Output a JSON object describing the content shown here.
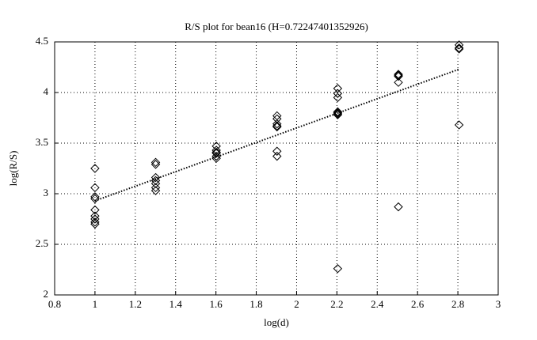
{
  "chart_data": {
    "type": "scatter",
    "title": "R/S plot for bean16 (H=0.72247401352926)",
    "x_label": "log(d)",
    "y_label": "log(R/S)",
    "x": [
      1,
      1,
      1,
      1,
      1,
      1,
      1,
      1,
      1,
      1.301,
      1.301,
      1.301,
      1.301,
      1.301,
      1.301,
      1.301,
      1.602,
      1.602,
      1.602,
      1.602,
      1.602,
      1.602,
      1.903,
      1.903,
      1.903,
      1.903,
      1.903,
      1.903,
      1.903,
      2.204,
      2.204,
      2.204,
      2.204,
      2.204,
      2.204,
      2.204,
      2.204,
      2.505,
      2.505,
      2.505,
      2.505,
      2.505,
      2.806,
      2.806,
      2.806,
      2.806
    ],
    "values": [
      3.25,
      3.06,
      2.97,
      2.95,
      2.84,
      2.78,
      2.75,
      2.72,
      2.7,
      3.31,
      3.29,
      3.16,
      3.13,
      3.1,
      3.06,
      3.03,
      3.47,
      3.43,
      3.41,
      3.4,
      3.37,
      3.35,
      3.77,
      3.74,
      3.69,
      3.67,
      3.66,
      3.42,
      3.37,
      4.04,
      3.99,
      3.95,
      3.81,
      3.8,
      3.79,
      3.78,
      2.26,
      4.18,
      4.17,
      4.16,
      4.1,
      2.87,
      4.47,
      4.44,
      4.43,
      3.68
    ],
    "color": "#000000",
    "fit": {
      "x": [
        1,
        2.806
      ],
      "values": [
        2.93,
        4.23
      ]
    },
    "xlim": [
      0.8,
      3
    ],
    "xticks": [
      0.8,
      1,
      1.2,
      1.4,
      1.6,
      1.8,
      2,
      2.2,
      2.4,
      2.6,
      2.8,
      3
    ],
    "ylim": [
      2,
      4.5
    ],
    "yticks": [
      2,
      2.5,
      3,
      3.5,
      4,
      4.5
    ],
    "grid": true
  }
}
